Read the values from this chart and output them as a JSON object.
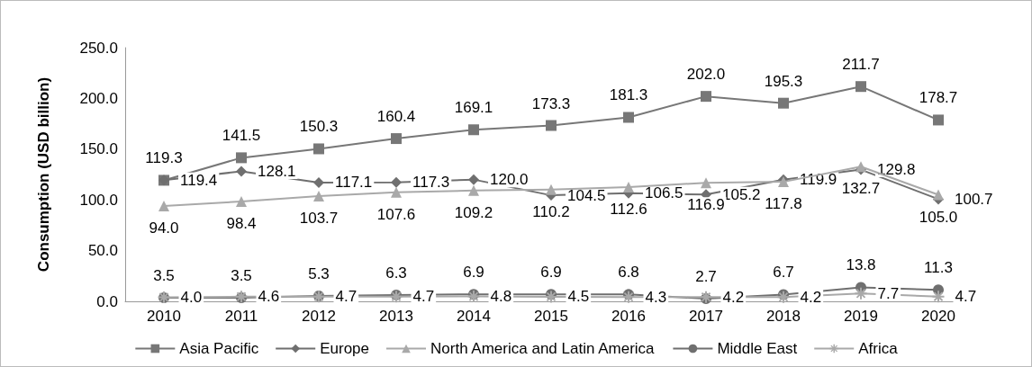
{
  "chart_data": {
    "type": "line",
    "ylabel": "Consumption (USD billion)",
    "categories": [
      "2010",
      "2011",
      "2012",
      "2013",
      "2014",
      "2015",
      "2016",
      "2017",
      "2018",
      "2019",
      "2020"
    ],
    "series": [
      {
        "name": "Asia Pacific",
        "color": "#777777",
        "marker": "square",
        "values": [
          119.3,
          141.5,
          150.3,
          160.4,
          169.1,
          173.3,
          181.3,
          202.0,
          195.3,
          211.7,
          178.7
        ],
        "value_labels": [
          "119.3",
          "141.5",
          "150.3",
          "160.4",
          "169.1",
          "173.3",
          "181.3",
          "202.0",
          "195.3",
          "211.7",
          "178.7"
        ]
      },
      {
        "name": "Europe",
        "color": "#6f6f6f",
        "marker": "diamond",
        "values": [
          119.4,
          128.1,
          117.1,
          117.3,
          120.0,
          104.5,
          106.5,
          105.2,
          119.9,
          129.8,
          100.7
        ],
        "value_labels": [
          "119.4",
          "128.1",
          "117.1",
          "117.3",
          "120.0",
          "104.5",
          "106.5",
          "105.2",
          "119.9",
          "129.8",
          "100.7"
        ]
      },
      {
        "name": "North America and Latin America",
        "color": "#a9a9a9",
        "marker": "triangle",
        "values": [
          94.0,
          98.4,
          103.7,
          107.6,
          109.2,
          110.2,
          112.6,
          116.9,
          117.8,
          132.7,
          105.0
        ],
        "value_labels": [
          "94.0",
          "98.4",
          "103.7",
          "107.6",
          "109.2",
          "110.2",
          "112.6",
          "116.9",
          "117.8",
          "132.7",
          "105.0"
        ]
      },
      {
        "name": "Middle East",
        "color": "#6f6f6f",
        "marker": "circle",
        "values": [
          3.5,
          3.5,
          5.3,
          6.3,
          6.9,
          6.9,
          6.8,
          2.7,
          6.7,
          13.8,
          11.3
        ],
        "value_labels": [
          "3.5",
          "3.5",
          "5.3",
          "6.3",
          "6.9",
          "6.9",
          "6.8",
          "2.7",
          "6.7",
          "13.8",
          "11.3"
        ]
      },
      {
        "name": "Africa",
        "color": "#a9a9a9",
        "marker": "cross",
        "values": [
          4.0,
          4.6,
          4.7,
          4.7,
          4.8,
          4.5,
          4.3,
          4.2,
          4.2,
          7.7,
          4.7
        ],
        "value_labels": [
          "4.0",
          "4.6",
          "4.7",
          "4.7",
          "4.8",
          "4.5",
          "4.3",
          "4.2",
          "4.2",
          "7.7",
          "4.7"
        ]
      }
    ],
    "ylim": [
      0,
      250
    ],
    "yticks": [
      {
        "value": 0,
        "label": "0.0"
      },
      {
        "value": 50,
        "label": "50.0"
      },
      {
        "value": 100,
        "label": "100.0"
      },
      {
        "value": 150,
        "label": "150.0"
      },
      {
        "value": 200,
        "label": "200.0"
      },
      {
        "value": 250,
        "label": "250.0"
      }
    ],
    "grid": false,
    "legend": "bottom"
  }
}
